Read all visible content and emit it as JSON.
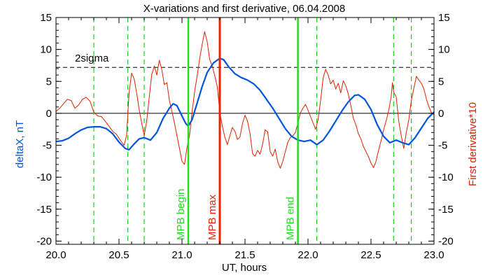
{
  "chart_data": {
    "type": "line",
    "title": "X-variations and first derivative, 06.04.2008",
    "xlabel": "UT, hours",
    "ylabel_left": "deltaX, nT",
    "ylabel_right": "First derivative*10",
    "xlim": [
      20.0,
      23.0
    ],
    "ylim": [
      -20.5,
      15
    ],
    "x_ticks": [
      "20.0",
      "20.5",
      "21.0",
      "21.5",
      "22.0",
      "22.5",
      "23.0"
    ],
    "y_ticks_left": [
      "-20",
      "-15",
      "-10",
      "-5",
      "0",
      "5",
      "10",
      "15"
    ],
    "y_ticks_right": [
      "-20",
      "-15",
      "-10",
      "-5",
      "0",
      "5",
      "10",
      "15"
    ],
    "colors": {
      "deltaX": "#0055dd",
      "derivative": "#dd2200",
      "mpb_edges": "#22dd22",
      "mpb_max": "#ee2200",
      "dashed_markers": "#22cc22"
    },
    "threshold": {
      "label": "2sigma",
      "value": 7.2
    },
    "vertical_markers": [
      {
        "x": 21.05,
        "label": "MPB begin",
        "kind": "mpb_edges"
      },
      {
        "x": 21.3,
        "label": "MPB max",
        "kind": "mpb_max"
      },
      {
        "x": 21.92,
        "label": "MPB end",
        "kind": "mpb_edges"
      }
    ],
    "dashed_lines_x": [
      20.3,
      20.57,
      20.7,
      21.05,
      22.07,
      22.68,
      22.82
    ],
    "series": [
      {
        "key": "deltaX",
        "points": [
          [
            20.0,
            -4.4
          ],
          [
            20.05,
            -4.3
          ],
          [
            20.1,
            -3.9
          ],
          [
            20.15,
            -3.2
          ],
          [
            20.2,
            -2.6
          ],
          [
            20.25,
            -2.2
          ],
          [
            20.3,
            -2.1
          ],
          [
            20.35,
            -2.1
          ],
          [
            20.4,
            -2.4
          ],
          [
            20.45,
            -3.2
          ],
          [
            20.5,
            -4.5
          ],
          [
            20.55,
            -5.5
          ],
          [
            20.58,
            -5.7
          ],
          [
            20.62,
            -4.8
          ],
          [
            20.66,
            -4.0
          ],
          [
            20.7,
            -3.8
          ],
          [
            20.75,
            -4.2
          ],
          [
            20.8,
            -3.0
          ],
          [
            20.85,
            -0.8
          ],
          [
            20.9,
            0.8
          ],
          [
            20.93,
            1.5
          ],
          [
            20.96,
            1.2
          ],
          [
            21.0,
            -0.4
          ],
          [
            21.03,
            -1.6
          ],
          [
            21.05,
            -2.0
          ],
          [
            21.08,
            -1.0
          ],
          [
            21.12,
            1.6
          ],
          [
            21.16,
            4.2
          ],
          [
            21.2,
            6.4
          ],
          [
            21.25,
            7.9
          ],
          [
            21.3,
            8.6
          ],
          [
            21.33,
            8.4
          ],
          [
            21.37,
            7.3
          ],
          [
            21.42,
            6.2
          ],
          [
            21.47,
            5.6
          ],
          [
            21.52,
            5.2
          ],
          [
            21.57,
            4.6
          ],
          [
            21.62,
            3.6
          ],
          [
            21.67,
            2.2
          ],
          [
            21.72,
            0.8
          ],
          [
            21.77,
            -0.8
          ],
          [
            21.82,
            -2.4
          ],
          [
            21.87,
            -3.6
          ],
          [
            21.92,
            -4.2
          ],
          [
            21.97,
            -4.4
          ],
          [
            22.02,
            -4.2
          ],
          [
            22.07,
            -4.9
          ],
          [
            22.12,
            -4.2
          ],
          [
            22.17,
            -2.8
          ],
          [
            22.22,
            -1.2
          ],
          [
            22.27,
            0.4
          ],
          [
            22.32,
            1.8
          ],
          [
            22.37,
            2.8
          ],
          [
            22.4,
            2.9
          ],
          [
            22.45,
            2.2
          ],
          [
            22.5,
            0.6
          ],
          [
            22.55,
            -1.8
          ],
          [
            22.6,
            -3.6
          ],
          [
            22.65,
            -4.6
          ],
          [
            22.7,
            -4.2
          ],
          [
            22.75,
            -4.6
          ],
          [
            22.8,
            -4.9
          ],
          [
            22.85,
            -3.8
          ],
          [
            22.9,
            -2.3
          ],
          [
            22.95,
            -0.8
          ],
          [
            23.0,
            0.2
          ]
        ]
      },
      {
        "key": "derivative",
        "points": [
          [
            20.0,
            0.3
          ],
          [
            20.03,
            0.8
          ],
          [
            20.06,
            1.5
          ],
          [
            20.09,
            2.2
          ],
          [
            20.12,
            2.0
          ],
          [
            20.15,
            0.8
          ],
          [
            20.18,
            1.3
          ],
          [
            20.21,
            2.2
          ],
          [
            20.24,
            2.5
          ],
          [
            20.27,
            1.9
          ],
          [
            20.3,
            0.2
          ],
          [
            20.33,
            -0.4
          ],
          [
            20.36,
            -0.5
          ],
          [
            20.39,
            -1.2
          ],
          [
            20.42,
            -2.0
          ],
          [
            20.45,
            -2.8
          ],
          [
            20.48,
            -3.3
          ],
          [
            20.51,
            -4.2
          ],
          [
            20.54,
            -5.0
          ],
          [
            20.56,
            -3.5
          ],
          [
            20.58,
            3.2
          ],
          [
            20.6,
            6.3
          ],
          [
            20.62,
            5.4
          ],
          [
            20.64,
            3.2
          ],
          [
            20.66,
            0.6
          ],
          [
            20.68,
            -1.5
          ],
          [
            20.7,
            -3.5
          ],
          [
            20.72,
            -1.2
          ],
          [
            20.74,
            2.5
          ],
          [
            20.76,
            6.1
          ],
          [
            20.78,
            7.4
          ],
          [
            20.8,
            6.0
          ],
          [
            20.82,
            8.3
          ],
          [
            20.84,
            6.8
          ],
          [
            20.86,
            4.5
          ],
          [
            20.88,
            4.8
          ],
          [
            20.9,
            2.0
          ],
          [
            20.92,
            0.3
          ],
          [
            20.94,
            -1.5
          ],
          [
            20.96,
            -3.5
          ],
          [
            20.98,
            -5.5
          ],
          [
            21.0,
            -7.5
          ],
          [
            21.02,
            -8.0
          ],
          [
            21.04,
            -5.3
          ],
          [
            21.06,
            -3.5
          ],
          [
            21.08,
            0.2
          ],
          [
            21.1,
            3.4
          ],
          [
            21.12,
            5.8
          ],
          [
            21.14,
            8.5
          ],
          [
            21.16,
            10.8
          ],
          [
            21.18,
            12.8
          ],
          [
            21.2,
            11.2
          ],
          [
            21.22,
            8.4
          ],
          [
            21.24,
            7.4
          ],
          [
            21.26,
            5.9
          ],
          [
            21.28,
            4.2
          ],
          [
            21.3,
            0.2
          ],
          [
            21.32,
            -2.0
          ],
          [
            21.34,
            -3.7
          ],
          [
            21.36,
            -4.9
          ],
          [
            21.38,
            -3.5
          ],
          [
            21.4,
            -2.2
          ],
          [
            21.42,
            -2.8
          ],
          [
            21.44,
            -4.1
          ],
          [
            21.46,
            -3.7
          ],
          [
            21.48,
            -1.6
          ],
          [
            21.5,
            -0.3
          ],
          [
            21.52,
            -1.2
          ],
          [
            21.54,
            -3.2
          ],
          [
            21.56,
            -6.3
          ],
          [
            21.58,
            -6.7
          ],
          [
            21.6,
            -5.8
          ],
          [
            21.62,
            -6.4
          ],
          [
            21.64,
            -4.8
          ],
          [
            21.66,
            -2.6
          ],
          [
            21.68,
            -2.9
          ],
          [
            21.7,
            -6.0
          ],
          [
            21.72,
            -6.7
          ],
          [
            21.74,
            -5.6
          ],
          [
            21.76,
            -7.6
          ],
          [
            21.78,
            -8.6
          ],
          [
            21.8,
            -7.5
          ],
          [
            21.82,
            -6.0
          ],
          [
            21.84,
            -4.5
          ],
          [
            21.86,
            -3.8
          ],
          [
            21.88,
            -3.5
          ],
          [
            21.9,
            -3.0
          ],
          [
            21.92,
            -1.5
          ],
          [
            21.94,
            0.1
          ],
          [
            21.96,
            0.8
          ],
          [
            21.98,
            1.4
          ],
          [
            22.0,
            0.5
          ],
          [
            22.02,
            -0.5
          ],
          [
            22.04,
            -1.5
          ],
          [
            22.06,
            -2.5
          ],
          [
            22.08,
            -1.0
          ],
          [
            22.1,
            2.0
          ],
          [
            22.12,
            5.5
          ],
          [
            22.14,
            6.9
          ],
          [
            22.16,
            6.0
          ],
          [
            22.18,
            4.6
          ],
          [
            22.2,
            5.2
          ],
          [
            22.22,
            3.8
          ],
          [
            22.24,
            4.7
          ],
          [
            22.26,
            3.2
          ],
          [
            22.28,
            5.1
          ],
          [
            22.3,
            4.3
          ],
          [
            22.32,
            3.0
          ],
          [
            22.34,
            1.2
          ],
          [
            22.36,
            -0.8
          ],
          [
            22.38,
            -1.8
          ],
          [
            22.4,
            -3.2
          ],
          [
            22.42,
            -4.0
          ],
          [
            22.44,
            -5.2
          ],
          [
            22.46,
            -6.0
          ],
          [
            22.48,
            -6.8
          ],
          [
            22.5,
            -7.8
          ],
          [
            22.52,
            -8.5
          ],
          [
            22.54,
            -7.5
          ],
          [
            22.56,
            -5.8
          ],
          [
            22.58,
            -4.3
          ],
          [
            22.6,
            -2.6
          ],
          [
            22.62,
            -1.2
          ],
          [
            22.64,
            0.4
          ],
          [
            22.66,
            2.6
          ],
          [
            22.67,
            4.8
          ],
          [
            22.68,
            3.3
          ],
          [
            22.7,
            2.6
          ],
          [
            22.72,
            -1.2
          ],
          [
            22.74,
            -3.5
          ],
          [
            22.76,
            -5.5
          ],
          [
            22.78,
            -3.0
          ],
          [
            22.8,
            -1.0
          ],
          [
            22.82,
            2.0
          ],
          [
            22.84,
            3.9
          ],
          [
            22.86,
            5.8
          ],
          [
            22.88,
            5.2
          ],
          [
            22.9,
            4.7
          ],
          [
            22.92,
            3.8
          ],
          [
            22.94,
            2.2
          ],
          [
            22.96,
            1.0
          ],
          [
            22.98,
            0.1
          ],
          [
            23.0,
            -0.2
          ]
        ]
      }
    ]
  }
}
